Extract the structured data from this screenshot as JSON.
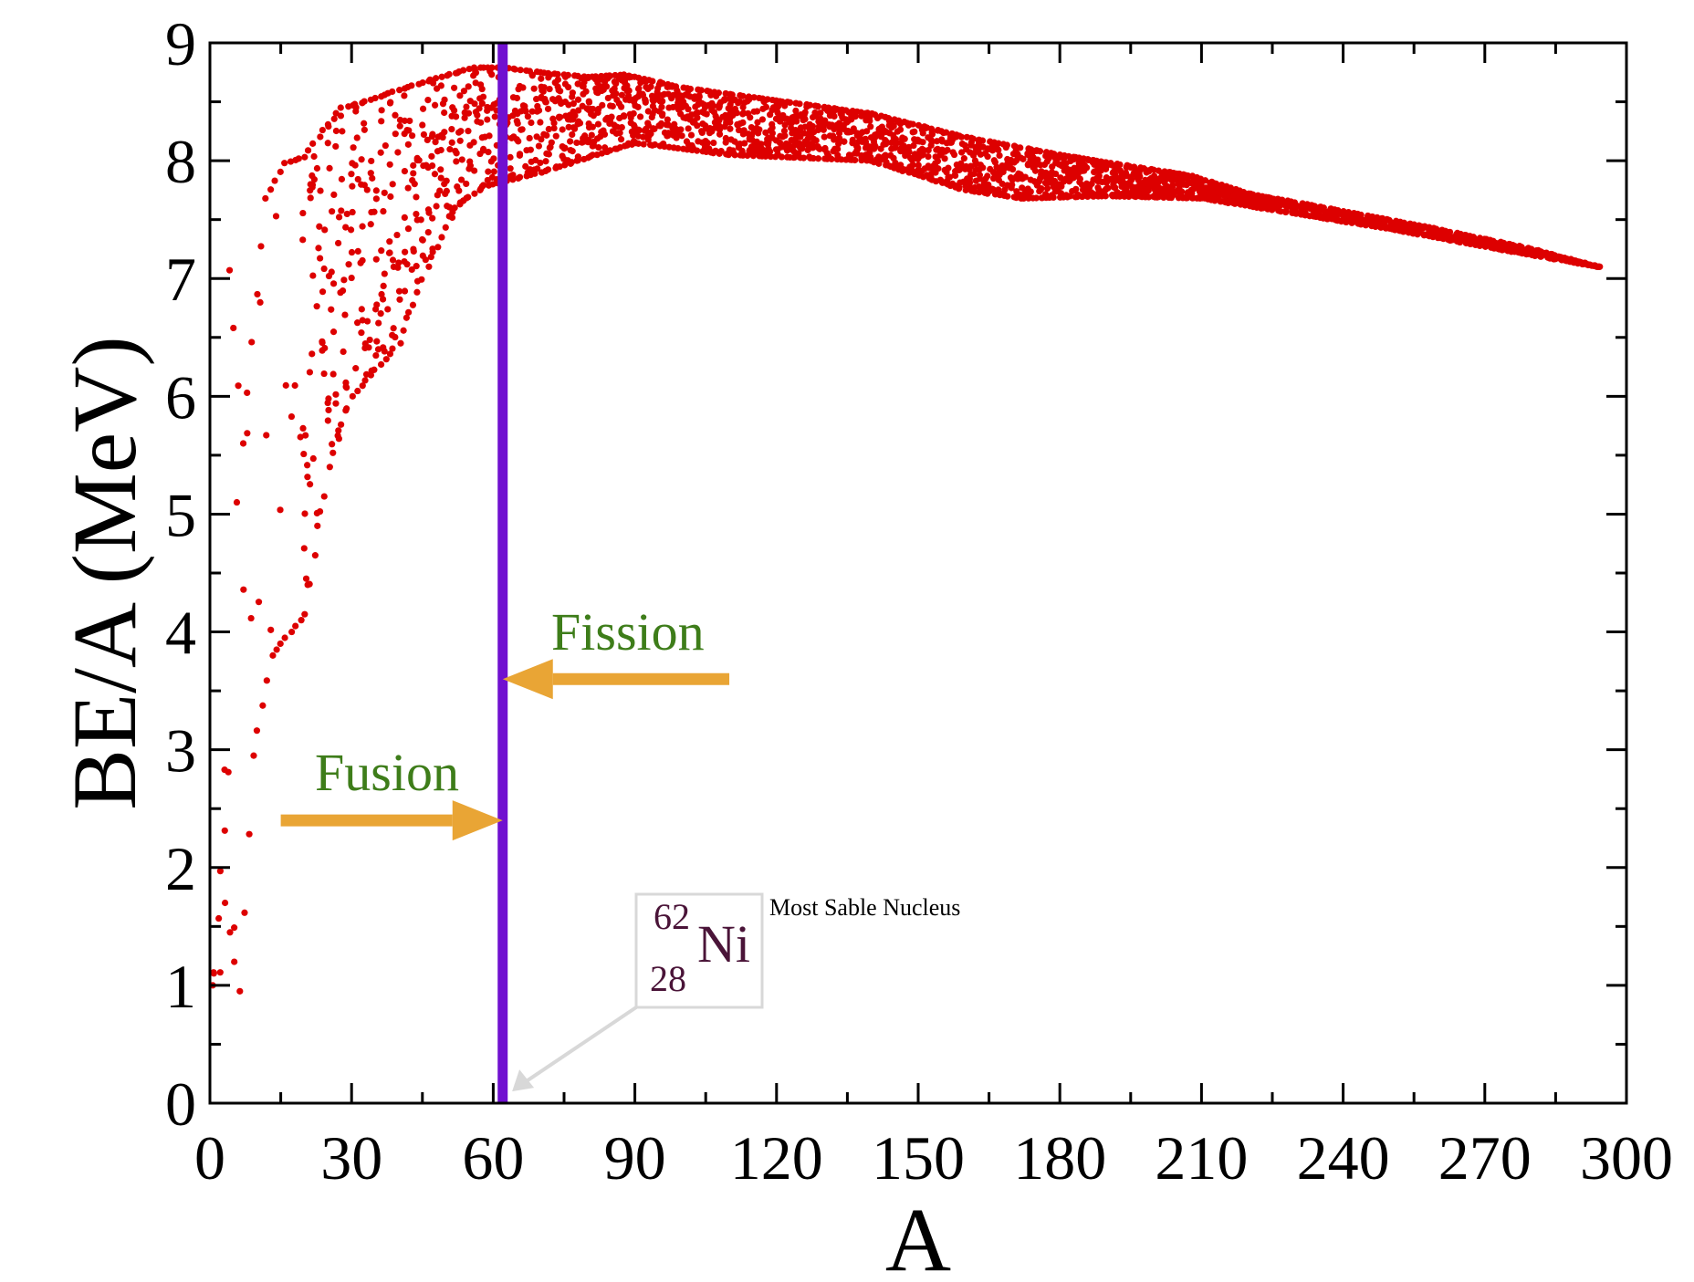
{
  "chart_data": {
    "type": "scatter",
    "title": "",
    "xlabel": "A",
    "ylabel": "BE/A (MeV)",
    "xlim": [
      0,
      300
    ],
    "ylim": [
      0,
      9
    ],
    "x_ticks": [
      "0",
      "30",
      "60",
      "90",
      "120",
      "150",
      "180",
      "210",
      "240",
      "270",
      "300"
    ],
    "y_ticks": [
      "0",
      "1",
      "2",
      "3",
      "4",
      "5",
      "6",
      "7",
      "8",
      "9"
    ],
    "grid": false,
    "series": [
      {
        "marker_color": "#dd0000",
        "envelope_upper": [
          [
            1,
            1.11
          ],
          [
            3,
            2.83
          ],
          [
            4,
            7.07
          ],
          [
            7,
            5.6
          ],
          [
            9,
            6.46
          ],
          [
            12,
            7.68
          ],
          [
            16,
            7.98
          ],
          [
            20,
            8.03
          ],
          [
            24,
            8.26
          ],
          [
            28,
            8.45
          ],
          [
            32,
            8.49
          ],
          [
            40,
            8.6
          ],
          [
            48,
            8.7
          ],
          [
            56,
            8.79
          ],
          [
            62,
            8.79
          ],
          [
            70,
            8.75
          ],
          [
            80,
            8.71
          ],
          [
            88,
            8.73
          ],
          [
            100,
            8.62
          ],
          [
            120,
            8.51
          ],
          [
            140,
            8.4
          ],
          [
            160,
            8.2
          ],
          [
            180,
            8.05
          ],
          [
            208,
            7.87
          ],
          [
            220,
            7.72
          ],
          [
            240,
            7.57
          ],
          [
            260,
            7.42
          ],
          [
            280,
            7.25
          ],
          [
            294,
            7.1
          ]
        ],
        "envelope_lower": [
          [
            1,
            1.0
          ],
          [
            2,
            1.11
          ],
          [
            3,
            1.7
          ],
          [
            6,
            0.95
          ],
          [
            9,
            2.95
          ],
          [
            13,
            3.8
          ],
          [
            20,
            4.15
          ],
          [
            25,
            5.4
          ],
          [
            30,
            6.0
          ],
          [
            40,
            6.45
          ],
          [
            46,
            7.1
          ],
          [
            52,
            7.6
          ],
          [
            58,
            7.78
          ],
          [
            70,
            7.9
          ],
          [
            90,
            8.15
          ],
          [
            110,
            8.05
          ],
          [
            140,
            8.0
          ],
          [
            160,
            7.75
          ],
          [
            172,
            7.68
          ],
          [
            190,
            7.7
          ],
          [
            210,
            7.68
          ],
          [
            230,
            7.55
          ],
          [
            250,
            7.42
          ],
          [
            270,
            7.27
          ],
          [
            294,
            7.1
          ]
        ]
      }
    ],
    "vertical_line": {
      "x": 62,
      "color": "#7010d0"
    },
    "annotations": {
      "fission": {
        "text": "Fission",
        "color": "#3e7d1a",
        "arrow_color": "#e9a535",
        "arrow_from": [
          110,
          3.6
        ],
        "arrow_to": [
          62,
          3.6
        ]
      },
      "fusion": {
        "text": "Fusion",
        "color": "#3e7d1a",
        "arrow_color": "#e9a535",
        "arrow_from": [
          15,
          2.4
        ],
        "arrow_to": [
          62,
          2.4
        ]
      },
      "nickel": {
        "mass_number": "62",
        "atomic_number": "28",
        "symbol": "Ni",
        "color": "#4a1438",
        "caption": "Most Sable Nucleus",
        "pointer_color": "#d8d8d8",
        "pointer_to": [
          64,
          0.1
        ]
      }
    }
  }
}
